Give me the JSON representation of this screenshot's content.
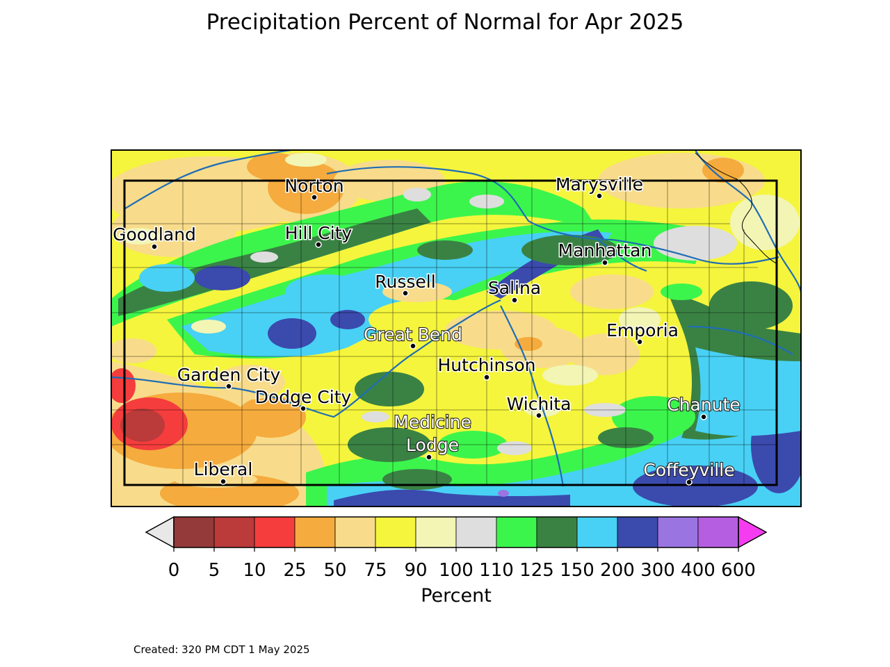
{
  "title": "Precipitation Percent of Normal for Apr 2025",
  "created": "Created: 320 PM CDT 1 May 2025",
  "colorbar": {
    "label": "Percent",
    "ticks": [
      "0",
      "5",
      "10",
      "25",
      "50",
      "75",
      "90",
      "100",
      "110",
      "125",
      "150",
      "200",
      "300",
      "400",
      "600"
    ],
    "under_color": "#e8e8e8",
    "over_color": "#f53cf0",
    "bins": [
      {
        "from": 0,
        "to": 5,
        "color": "#943a3a"
      },
      {
        "from": 5,
        "to": 10,
        "color": "#bb3a3a"
      },
      {
        "from": 10,
        "to": 25,
        "color": "#f53d3d"
      },
      {
        "from": 25,
        "to": 50,
        "color": "#f5ab3d"
      },
      {
        "from": 50,
        "to": 75,
        "color": "#f8dc8b"
      },
      {
        "from": 75,
        "to": 90,
        "color": "#f5f53d"
      },
      {
        "from": 90,
        "to": 100,
        "color": "#f2f5b4"
      },
      {
        "from": 100,
        "to": 110,
        "color": "#dedede"
      },
      {
        "from": 110,
        "to": 125,
        "color": "#3cf54c"
      },
      {
        "from": 125,
        "to": 150,
        "color": "#3a8244"
      },
      {
        "from": 150,
        "to": 200,
        "color": "#48d1f5"
      },
      {
        "from": 200,
        "to": 300,
        "color": "#3b4aad"
      },
      {
        "from": 300,
        "to": 400,
        "color": "#9a75e2"
      },
      {
        "from": 400,
        "to": 600,
        "color": "#b55ee2"
      }
    ]
  },
  "cities": [
    {
      "name": "Norton",
      "style": "dark"
    },
    {
      "name": "Marysville",
      "style": "dark"
    },
    {
      "name": "Goodland",
      "style": "dark"
    },
    {
      "name": "Hill City",
      "style": "dark"
    },
    {
      "name": "Manhattan",
      "style": "dark"
    },
    {
      "name": "Russell",
      "style": "dark"
    },
    {
      "name": "Salina",
      "style": "dark"
    },
    {
      "name": "Great Bend",
      "style": "light"
    },
    {
      "name": "Emporia",
      "style": "dark"
    },
    {
      "name": "Hutchinson",
      "style": "dark"
    },
    {
      "name": "Garden City",
      "style": "dark"
    },
    {
      "name": "Dodge City",
      "style": "dark"
    },
    {
      "name": "Wichita",
      "style": "dark"
    },
    {
      "name": "Chanute",
      "style": "light"
    },
    {
      "name": "Medicine Lodge",
      "style": "light"
    },
    {
      "name": "Liberal",
      "style": "dark"
    },
    {
      "name": "Coffeyville",
      "style": "light"
    }
  ]
}
